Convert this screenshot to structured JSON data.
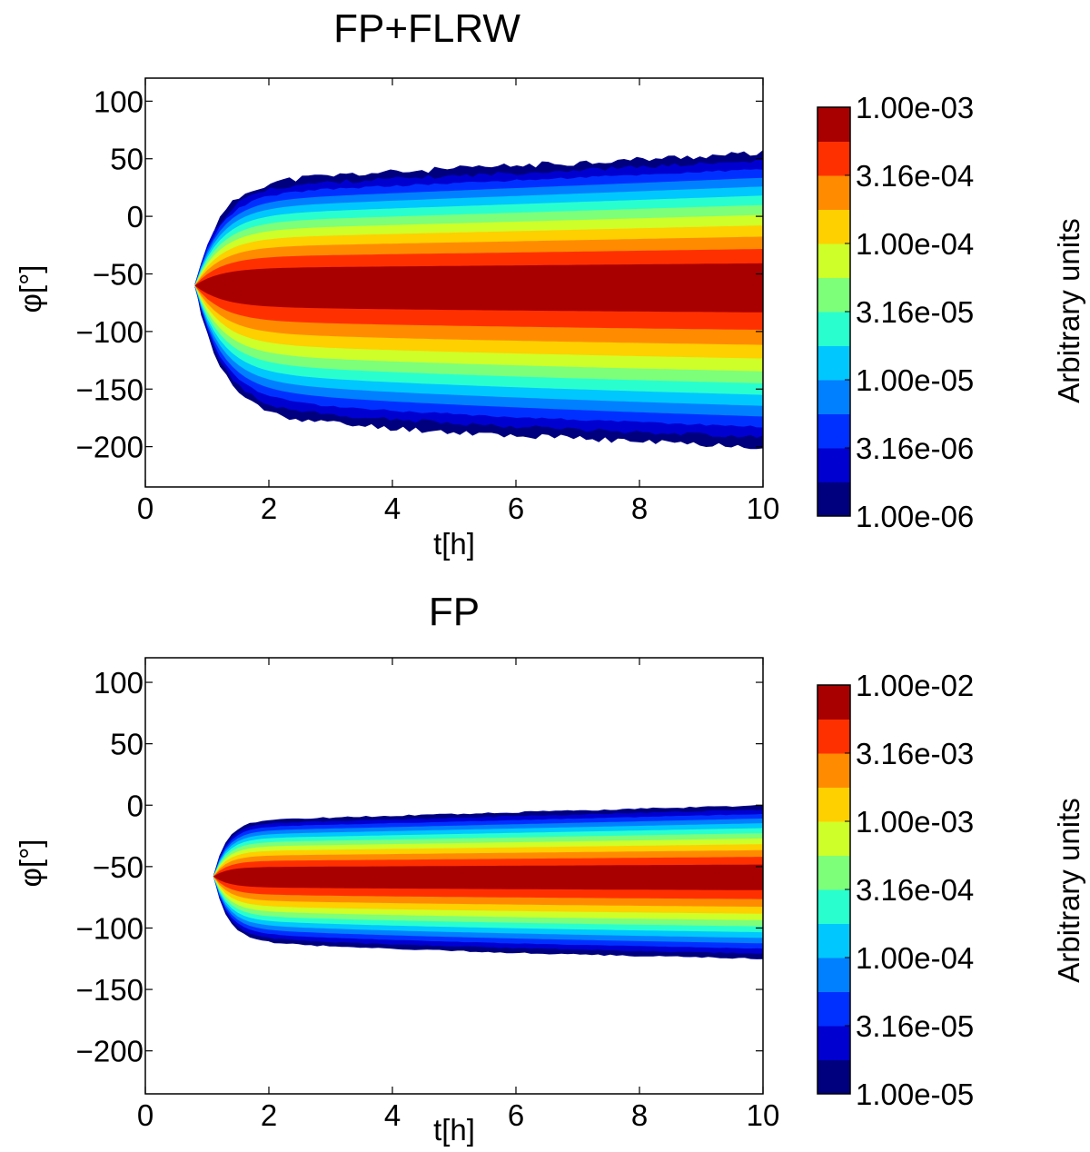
{
  "chart_data": [
    {
      "type": "heatmap",
      "subtype": "filled-contour",
      "title": "FP+FLRW",
      "xlabel": "t[h]",
      "ylabel": "φ[°]",
      "xlim": [
        0,
        10
      ],
      "ylim": [
        -235,
        120
      ],
      "xticks": [
        0,
        2,
        4,
        6,
        8,
        10
      ],
      "yticks": [
        100,
        50,
        0,
        -50,
        -100,
        -150,
        -200
      ],
      "colorbar": {
        "label": "Arbitrary units",
        "scale": "log",
        "min": 1e-06,
        "max": 0.001,
        "tick_labels": [
          "1.00e-03",
          "3.16e-04",
          "1.00e-04",
          "3.16e-05",
          "1.00e-05",
          "3.16e-06",
          "1.00e-06"
        ],
        "levels": 12
      },
      "features": {
        "onset_t": 0.8,
        "peak_phi": -60,
        "upper_edge_phi_end": 55,
        "lower_edge_phi_end": -200,
        "core_band_phi": [
          -85,
          -30
        ]
      }
    },
    {
      "type": "heatmap",
      "subtype": "filled-contour",
      "title": "FP",
      "xlabel": "t[h]",
      "ylabel": "φ[°]",
      "xlim": [
        0,
        10
      ],
      "ylim": [
        -235,
        120
      ],
      "xticks": [
        0,
        2,
        4,
        6,
        8,
        10
      ],
      "yticks": [
        100,
        50,
        0,
        -50,
        -100,
        -150,
        -200
      ],
      "colorbar": {
        "label": "Arbitrary units",
        "scale": "log",
        "min": 1e-05,
        "max": 0.01,
        "tick_labels": [
          "1.00e-02",
          "3.16e-03",
          "1.00e-03",
          "3.16e-04",
          "1.00e-04",
          "3.16e-05",
          "1.00e-05"
        ],
        "levels": 12
      },
      "features": {
        "onset_t": 1.1,
        "peak_phi": -58,
        "upper_edge_phi_end": 0,
        "lower_edge_phi_end": -125,
        "core_band_phi": [
          -75,
          -40
        ]
      }
    }
  ],
  "colors": [
    "#00007f",
    "#0000d0",
    "#0030ff",
    "#0080ff",
    "#00c8ff",
    "#29ffce",
    "#7dff7a",
    "#ceff29",
    "#ffd000",
    "#ff8c00",
    "#ff3000",
    "#a80000"
  ]
}
